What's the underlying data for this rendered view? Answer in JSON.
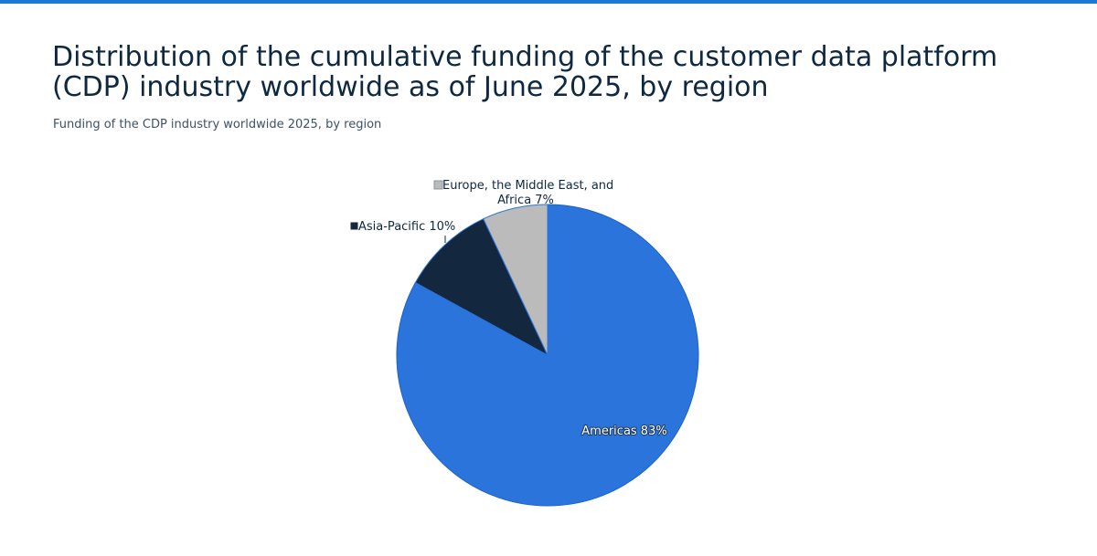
{
  "header": {
    "title": "Distribution of the cumulative funding of the customer data platform (CDP) industry worldwide as of June 2025, by region",
    "subtitle": "Funding of the CDP industry worldwide 2025, by region"
  },
  "colors": {
    "accent": "#1b78d4",
    "americas": "#2a74dc",
    "asia_pacific": "#13273f",
    "emea": "#bbbbbb"
  },
  "chart_data": {
    "type": "pie",
    "title": "Distribution of the cumulative funding of the customer data platform (CDP) industry worldwide as of June 2025, by region",
    "subtitle": "Funding of the CDP industry worldwide 2025, by region",
    "unit": "%",
    "slices": [
      {
        "name": "Americas",
        "value": 83,
        "label": "Americas 83%",
        "color": "#2a74dc"
      },
      {
        "name": "Asia-Pacific",
        "value": 10,
        "label": "Asia-Pacific 10%",
        "color": "#13273f"
      },
      {
        "name": "Europe, the Middle East, and Africa",
        "value": 7,
        "label_lines": [
          "Europe, the Middle East, and",
          "Africa 7%"
        ],
        "color": "#bbbbbb"
      }
    ],
    "start": "12 o'clock",
    "direction": "clockwise",
    "legend": "none"
  }
}
